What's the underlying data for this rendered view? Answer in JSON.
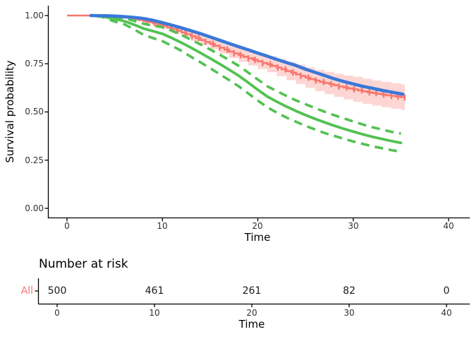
{
  "chart_data": {
    "type": "line",
    "title": "",
    "xlabel": "Time",
    "ylabel": "Survival probability",
    "xlim": [
      -2,
      42.2
    ],
    "ylim": [
      -0.05,
      1.05
    ],
    "grid": false,
    "legend": "none",
    "x_ticks": [
      0,
      10,
      20,
      30,
      40
    ],
    "x_tick_labels": [
      "0",
      "10",
      "20",
      "30",
      "40"
    ],
    "y_ticks": [
      1.0,
      0.75,
      0.5,
      0.25,
      0.0
    ],
    "y_tick_labels": [
      "1.00",
      "0.75",
      "0.50",
      "0.25",
      "0.00"
    ],
    "colors": {
      "km": "#F8766D",
      "km_ribbon": "rgba(248,118,109,0.30)",
      "smooth_fit": "#3B78D8",
      "parametric_fit": "#52C152",
      "axis": "#000000"
    },
    "series": [
      {
        "name": "km-estimate",
        "style": "step",
        "color": "#F8766D",
        "points": [
          [
            0,
            1.0
          ],
          [
            3,
            1.0
          ],
          [
            3.5,
            0.999
          ],
          [
            4,
            0.997
          ],
          [
            4.5,
            0.996
          ],
          [
            5,
            0.994
          ],
          [
            5.5,
            0.992
          ],
          [
            6,
            0.989
          ],
          [
            6.5,
            0.986
          ],
          [
            7,
            0.982
          ],
          [
            7.5,
            0.977
          ],
          [
            8,
            0.972
          ],
          [
            8.5,
            0.966
          ],
          [
            9,
            0.96
          ],
          [
            9.5,
            0.953
          ],
          [
            10,
            0.946
          ],
          [
            10.5,
            0.938
          ],
          [
            11,
            0.93
          ],
          [
            11.5,
            0.921
          ],
          [
            12,
            0.912
          ],
          [
            12.5,
            0.903
          ],
          [
            13,
            0.893
          ],
          [
            13.5,
            0.883
          ],
          [
            14,
            0.873
          ],
          [
            14.5,
            0.863
          ],
          [
            15,
            0.853
          ],
          [
            15.5,
            0.843
          ],
          [
            16,
            0.833
          ],
          [
            16.5,
            0.823
          ],
          [
            17,
            0.813
          ],
          [
            17.5,
            0.804
          ],
          [
            18,
            0.795
          ],
          [
            18.5,
            0.786
          ],
          [
            19,
            0.778
          ],
          [
            19.5,
            0.77
          ],
          [
            20,
            0.762
          ],
          [
            20.5,
            0.754
          ],
          [
            21,
            0.747
          ],
          [
            21.5,
            0.739
          ],
          [
            22,
            0.73
          ],
          [
            22.5,
            0.721
          ],
          [
            23,
            0.712
          ],
          [
            23.5,
            0.704
          ],
          [
            24,
            0.695
          ],
          [
            24.5,
            0.687
          ],
          [
            25,
            0.678
          ],
          [
            25.5,
            0.67
          ],
          [
            26,
            0.663
          ],
          [
            26.5,
            0.656
          ],
          [
            27,
            0.65
          ],
          [
            27.5,
            0.644
          ],
          [
            28,
            0.638
          ],
          [
            28.5,
            0.632
          ],
          [
            29,
            0.627
          ],
          [
            29.5,
            0.622
          ],
          [
            30,
            0.617
          ],
          [
            30.5,
            0.612
          ],
          [
            31,
            0.607
          ],
          [
            31.5,
            0.602
          ],
          [
            32,
            0.598
          ],
          [
            32.5,
            0.594
          ],
          [
            33,
            0.59
          ],
          [
            33.5,
            0.586
          ],
          [
            34,
            0.583
          ],
          [
            34.5,
            0.58
          ],
          [
            35,
            0.577
          ],
          [
            35.4,
            0.575
          ]
        ]
      },
      {
        "name": "km-confidence-ribbon",
        "style": "ribbon-step",
        "color": "rgba(248,118,109,0.30)",
        "upper": [
          [
            7,
            0.99
          ],
          [
            8,
            0.982
          ],
          [
            9,
            0.973
          ],
          [
            10,
            0.961
          ],
          [
            11,
            0.948
          ],
          [
            12,
            0.933
          ],
          [
            13,
            0.917
          ],
          [
            14,
            0.899
          ],
          [
            15,
            0.881
          ],
          [
            16,
            0.864
          ],
          [
            17,
            0.846
          ],
          [
            18,
            0.83
          ],
          [
            19,
            0.815
          ],
          [
            20,
            0.801
          ],
          [
            21,
            0.788
          ],
          [
            22,
            0.774
          ],
          [
            23,
            0.759
          ],
          [
            24,
            0.745
          ],
          [
            25,
            0.731
          ],
          [
            26,
            0.718
          ],
          [
            27,
            0.708
          ],
          [
            28,
            0.698
          ],
          [
            29,
            0.689
          ],
          [
            30,
            0.682
          ],
          [
            31,
            0.672
          ],
          [
            32,
            0.663
          ],
          [
            33,
            0.656
          ],
          [
            34,
            0.649
          ],
          [
            35,
            0.643
          ],
          [
            35.4,
            0.641
          ]
        ],
        "lower": [
          [
            7,
            0.974
          ],
          [
            8,
            0.962
          ],
          [
            9,
            0.947
          ],
          [
            10,
            0.931
          ],
          [
            11,
            0.912
          ],
          [
            12,
            0.891
          ],
          [
            13,
            0.869
          ],
          [
            14,
            0.847
          ],
          [
            15,
            0.825
          ],
          [
            16,
            0.802
          ],
          [
            17,
            0.78
          ],
          [
            18,
            0.76
          ],
          [
            19,
            0.741
          ],
          [
            20,
            0.723
          ],
          [
            21,
            0.706
          ],
          [
            22,
            0.686
          ],
          [
            23,
            0.665
          ],
          [
            24,
            0.645
          ],
          [
            25,
            0.625
          ],
          [
            26,
            0.608
          ],
          [
            27,
            0.592
          ],
          [
            28,
            0.578
          ],
          [
            29,
            0.565
          ],
          [
            30,
            0.552
          ],
          [
            31,
            0.542
          ],
          [
            32,
            0.533
          ],
          [
            33,
            0.524
          ],
          [
            34,
            0.517
          ],
          [
            35,
            0.511
          ],
          [
            35.4,
            0.509
          ]
        ]
      },
      {
        "name": "smooth-fit",
        "style": "solid",
        "color": "#3B78D8",
        "points": [
          [
            2.5,
            1.0
          ],
          [
            4,
            0.999
          ],
          [
            5,
            0.997
          ],
          [
            6,
            0.994
          ],
          [
            7,
            0.99
          ],
          [
            8,
            0.985
          ],
          [
            9,
            0.975
          ],
          [
            10,
            0.963
          ],
          [
            11,
            0.95
          ],
          [
            12,
            0.936
          ],
          [
            13,
            0.921
          ],
          [
            14,
            0.906
          ],
          [
            15,
            0.889
          ],
          [
            16,
            0.872
          ],
          [
            17,
            0.855
          ],
          [
            18,
            0.838
          ],
          [
            19,
            0.822
          ],
          [
            20,
            0.805
          ],
          [
            21,
            0.789
          ],
          [
            22,
            0.772
          ],
          [
            23,
            0.756
          ],
          [
            24,
            0.741
          ],
          [
            25,
            0.722
          ],
          [
            26,
            0.705
          ],
          [
            27,
            0.689
          ],
          [
            28,
            0.672
          ],
          [
            29,
            0.658
          ],
          [
            30,
            0.645
          ],
          [
            31,
            0.633
          ],
          [
            32,
            0.623
          ],
          [
            33,
            0.612
          ],
          [
            34,
            0.603
          ],
          [
            35.2,
            0.592
          ]
        ]
      },
      {
        "name": "parametric-fit",
        "style": "solid",
        "color": "#52C152",
        "points": [
          [
            3,
            0.998
          ],
          [
            4,
            0.992
          ],
          [
            5,
            0.983
          ],
          [
            6,
            0.971
          ],
          [
            7,
            0.953
          ],
          [
            8,
            0.933
          ],
          [
            9,
            0.919
          ],
          [
            10,
            0.905
          ],
          [
            11,
            0.883
          ],
          [
            12,
            0.859
          ],
          [
            13,
            0.833
          ],
          [
            14,
            0.806
          ],
          [
            15,
            0.778
          ],
          [
            16,
            0.749
          ],
          [
            17,
            0.719
          ],
          [
            18,
            0.688
          ],
          [
            19,
            0.652
          ],
          [
            20,
            0.615
          ],
          [
            21,
            0.58
          ],
          [
            22,
            0.553
          ],
          [
            23,
            0.528
          ],
          [
            24,
            0.505
          ],
          [
            25,
            0.484
          ],
          [
            26,
            0.464
          ],
          [
            27,
            0.446
          ],
          [
            28,
            0.429
          ],
          [
            29,
            0.413
          ],
          [
            30,
            0.398
          ],
          [
            31,
            0.384
          ],
          [
            32,
            0.371
          ],
          [
            33,
            0.36
          ],
          [
            34,
            0.349
          ],
          [
            35,
            0.34
          ]
        ]
      },
      {
        "name": "parametric-ci-upper",
        "style": "dashed",
        "color": "#52C152",
        "points": [
          [
            3.5,
            0.999
          ],
          [
            5,
            0.995
          ],
          [
            6,
            0.986
          ],
          [
            7,
            0.973
          ],
          [
            8,
            0.958
          ],
          [
            9,
            0.947
          ],
          [
            10,
            0.94
          ],
          [
            11,
            0.921
          ],
          [
            12,
            0.899
          ],
          [
            13,
            0.875
          ],
          [
            14,
            0.85
          ],
          [
            15,
            0.824
          ],
          [
            16,
            0.797
          ],
          [
            17,
            0.769
          ],
          [
            18,
            0.739
          ],
          [
            19,
            0.704
          ],
          [
            20,
            0.668
          ],
          [
            21,
            0.633
          ],
          [
            22,
            0.608
          ],
          [
            23,
            0.583
          ],
          [
            24,
            0.56
          ],
          [
            25,
            0.54
          ],
          [
            26,
            0.52
          ],
          [
            27,
            0.501
          ],
          [
            28,
            0.483
          ],
          [
            29,
            0.467
          ],
          [
            30,
            0.451
          ],
          [
            31,
            0.435
          ],
          [
            32,
            0.421
          ],
          [
            33,
            0.409
          ],
          [
            34,
            0.397
          ],
          [
            35,
            0.388
          ]
        ]
      },
      {
        "name": "parametric-ci-lower",
        "style": "dashed",
        "color": "#52C152",
        "points": [
          [
            3.5,
            0.996
          ],
          [
            5,
            0.969
          ],
          [
            6,
            0.955
          ],
          [
            7,
            0.929
          ],
          [
            8,
            0.901
          ],
          [
            9,
            0.883
          ],
          [
            10,
            0.867
          ],
          [
            11,
            0.843
          ],
          [
            12,
            0.817
          ],
          [
            13,
            0.786
          ],
          [
            14,
            0.757
          ],
          [
            15,
            0.727
          ],
          [
            16,
            0.696
          ],
          [
            17,
            0.665
          ],
          [
            18,
            0.633
          ],
          [
            19,
            0.596
          ],
          [
            20,
            0.559
          ],
          [
            21,
            0.524
          ],
          [
            22,
            0.496
          ],
          [
            23,
            0.471
          ],
          [
            24,
            0.449
          ],
          [
            25,
            0.428
          ],
          [
            26,
            0.409
          ],
          [
            27,
            0.391
          ],
          [
            28,
            0.376
          ],
          [
            29,
            0.361
          ],
          [
            30,
            0.347
          ],
          [
            31,
            0.334
          ],
          [
            32,
            0.322
          ],
          [
            33,
            0.312
          ],
          [
            34,
            0.302
          ],
          [
            35,
            0.294
          ]
        ]
      }
    ],
    "censor_times": [
      8.3,
      9.2,
      10.1,
      10.9,
      11.6,
      12.4,
      13.1,
      13.8,
      14.5,
      15.3,
      16,
      16.8,
      17.5,
      18.2,
      19,
      19.7,
      20.5,
      21.3,
      22.1,
      22.9,
      23.7,
      24.5,
      25.3,
      26.1,
      26.9,
      27.7,
      28.5,
      29.3,
      30.1,
      30.9,
      31.7,
      32.4,
      33.2,
      34,
      34.7,
      35.4
    ]
  },
  "risk_table": {
    "title": "Number at risk",
    "row_label": "All",
    "row_label_color": "#F8766D",
    "times": [
      0,
      10,
      20,
      30,
      40
    ],
    "time_labels": [
      "0",
      "10",
      "20",
      "30",
      "40"
    ],
    "values": [
      "500",
      "461",
      "261",
      "82",
      "0"
    ],
    "xlabel": "Time"
  }
}
